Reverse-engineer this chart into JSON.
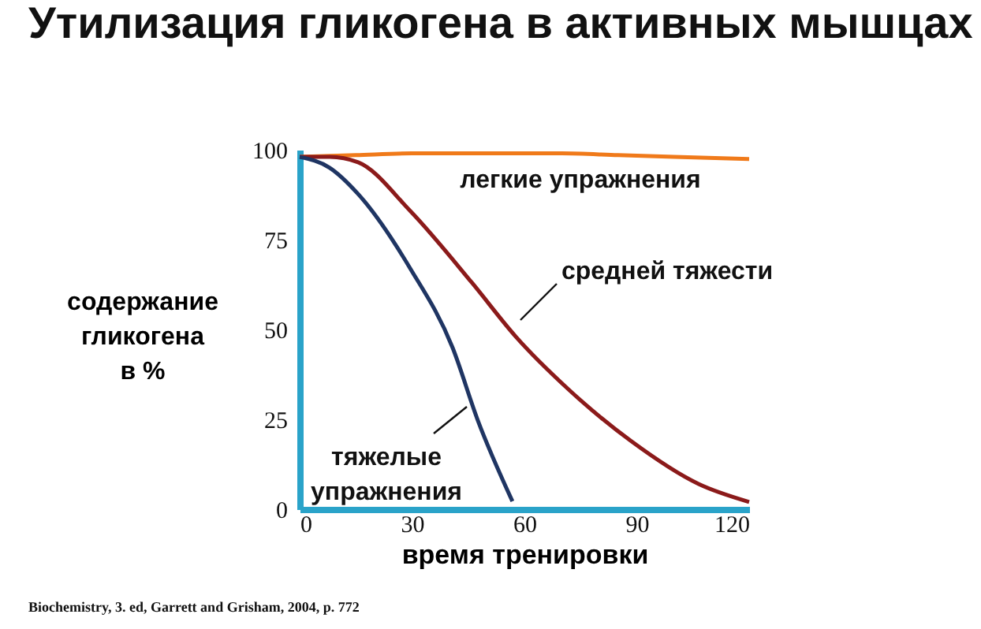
{
  "chart_data": {
    "type": "line",
    "title": "Утилизация гликогена в активных мышцах",
    "xlabel": "время тренировки",
    "ylabel": "содержание гликогена в %",
    "xlim": [
      0,
      120
    ],
    "ylim": [
      0,
      100
    ],
    "xticks": [
      0,
      30,
      60,
      90,
      120
    ],
    "yticks": [
      0,
      25,
      50,
      75,
      100
    ],
    "grid": false,
    "legend": false,
    "marker": "none",
    "line_style": "solid",
    "annotations": [
      "Biochemistry, 3. ed, Garrett and Grisham, 2004, p. 772"
    ],
    "series": [
      {
        "name": "легкие упражнения",
        "color": "#f07a1a",
        "x": [
          0,
          15,
          30,
          50,
          70,
          85,
          100,
          120
        ],
        "values": [
          98,
          98.5,
          99,
          99,
          99,
          98.5,
          98,
          97.4
        ]
      },
      {
        "name": "средней тяжести",
        "color": "#8b1a1a",
        "x": [
          0,
          8,
          15.6,
          29.5,
          46,
          57.7,
          71.6,
          88.4,
          106.5,
          120
        ],
        "values": [
          98,
          98,
          96.5,
          83,
          63,
          48,
          33.5,
          19,
          7,
          2
        ]
      },
      {
        "name": "тяжелые упражнения",
        "color": "#1f3563",
        "x": [
          0,
          8,
          15.6,
          29.5,
          40.8,
          47.6,
          56.8
        ],
        "values": [
          98,
          95,
          87.7,
          67,
          45,
          24.6,
          2.2
        ]
      }
    ]
  }
}
